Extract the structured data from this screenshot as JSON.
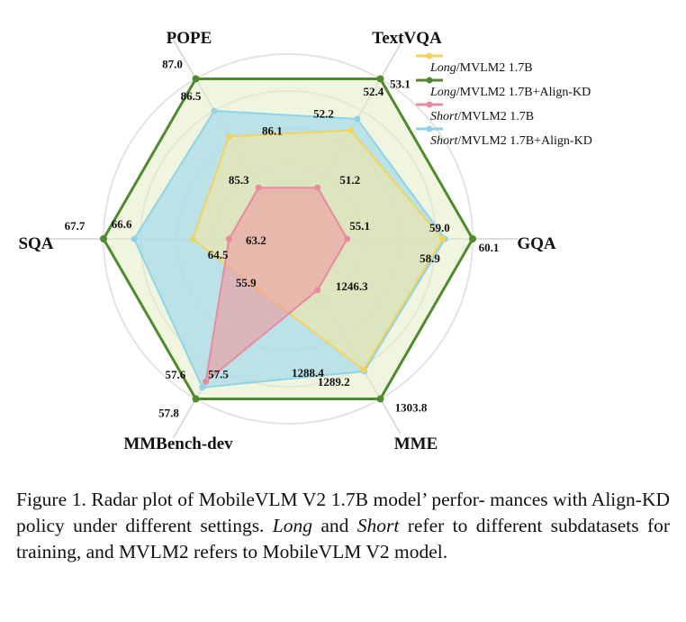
{
  "chart_data": {
    "type": "radar",
    "axes": [
      "TextVQA",
      "GQA",
      "MME",
      "MMBench-dev",
      "SQA",
      "POPE"
    ],
    "series": [
      {
        "name_italic": "Long",
        "name_rest": "/MVLM2 1.7B",
        "color": "#f2d35e",
        "fill": "#f7e79a",
        "values": [
          52.2,
          58.9,
          1288.4,
          55.9,
          64.5,
          86.1
        ],
        "labels": [
          "52.2",
          "58.9",
          "1288.4",
          "55.9",
          "64.5",
          "86.1"
        ]
      },
      {
        "name_italic": "Long",
        "name_rest": "/MVLM2 1.7B+Align-KD",
        "color": "#4e8a2e",
        "fill": "#e2edc4",
        "values": [
          53.1,
          60.1,
          1303.8,
          57.8,
          67.7,
          87.0
        ],
        "labels": [
          "53.1",
          "60.1",
          "1303.8",
          "57.8",
          "67.7",
          "87.0"
        ]
      },
      {
        "name_italic": "Short",
        "name_rest": "/MVLM2 1.7B",
        "color": "#e88aa0",
        "fill": "#ee9a9f",
        "values": [
          51.2,
          55.1,
          1246.3,
          57.5,
          63.2,
          85.3
        ],
        "labels": [
          "51.2",
          "55.1",
          "1246.3",
          "57.5",
          "63.2",
          "85.3"
        ]
      },
      {
        "name_italic": "Short",
        "name_rest": "/MVLM2 1.7B+Align-KD",
        "color": "#8fd3e8",
        "fill": "#a9dbe8",
        "values": [
          52.4,
          59.0,
          1289.2,
          57.6,
          66.6,
          86.5
        ],
        "labels": [
          "52.4",
          "59.0",
          "1289.2",
          "57.6",
          "66.6",
          "86.5"
        ]
      }
    ],
    "legend_position": "top-right",
    "grid": true
  },
  "caption": {
    "prefix": "Figure 1.   Radar plot of MobileVLM V2 1.7B model’ perfor- mances with Align-KD policy under different settings. ",
    "long_word": "Long",
    "mid": " and ",
    "short_word": "Short",
    "suffix": " refer to different subdatasets for training, and MVLM2 refers to MobileVLM V2 model."
  }
}
